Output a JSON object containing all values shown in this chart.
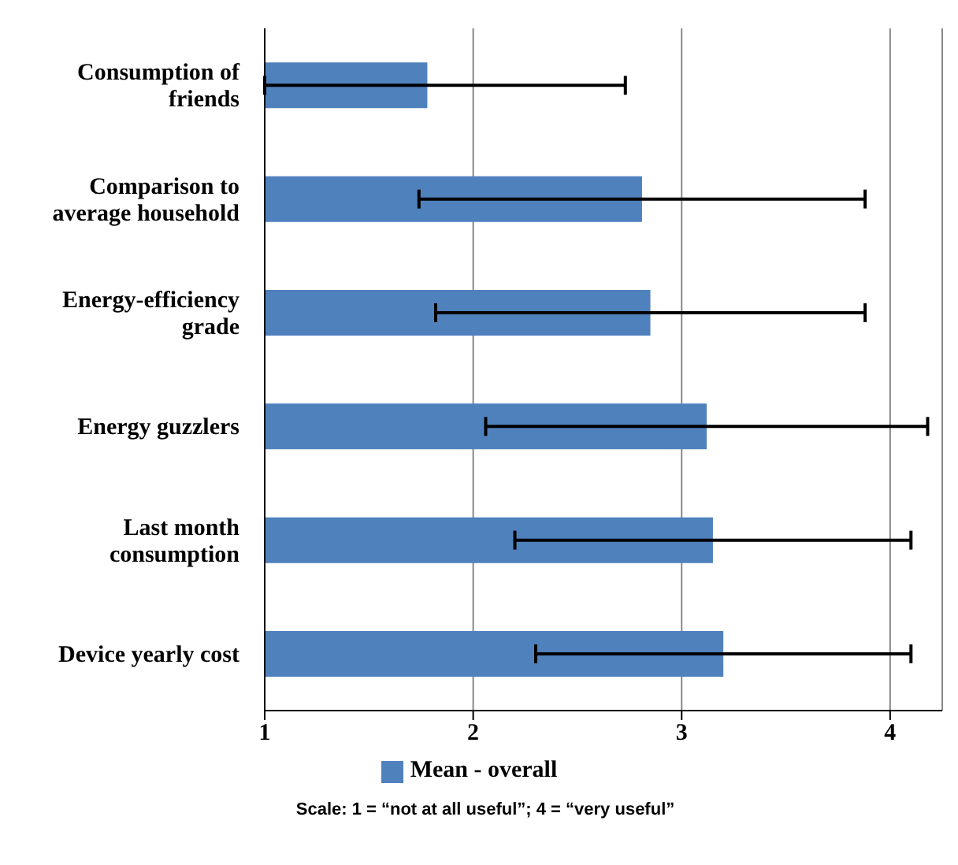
{
  "chart_data": {
    "type": "bar",
    "orientation": "horizontal",
    "categories": [
      "Consumption of friends",
      "Comparison to average household",
      "Energy-efficiency grade",
      "Energy guzzlers",
      "Last month consumption",
      "Device yearly cost"
    ],
    "series": [
      {
        "name": "Mean - overall",
        "color": "#4f81bd",
        "values": [
          1.78,
          2.81,
          2.85,
          3.12,
          3.15,
          3.2
        ],
        "errors": [
          [
            1,
            2.73
          ],
          1.07,
          1.03,
          1.06,
          0.95,
          0.9
        ]
      }
    ],
    "xlim": [
      1,
      4.25
    ],
    "xticks": [
      1,
      2,
      3,
      4
    ],
    "grid": "x",
    "legend": "bottom",
    "annotations": [
      "Scale: 1 = “not at all useful”; 4 = “very useful”"
    ]
  }
}
